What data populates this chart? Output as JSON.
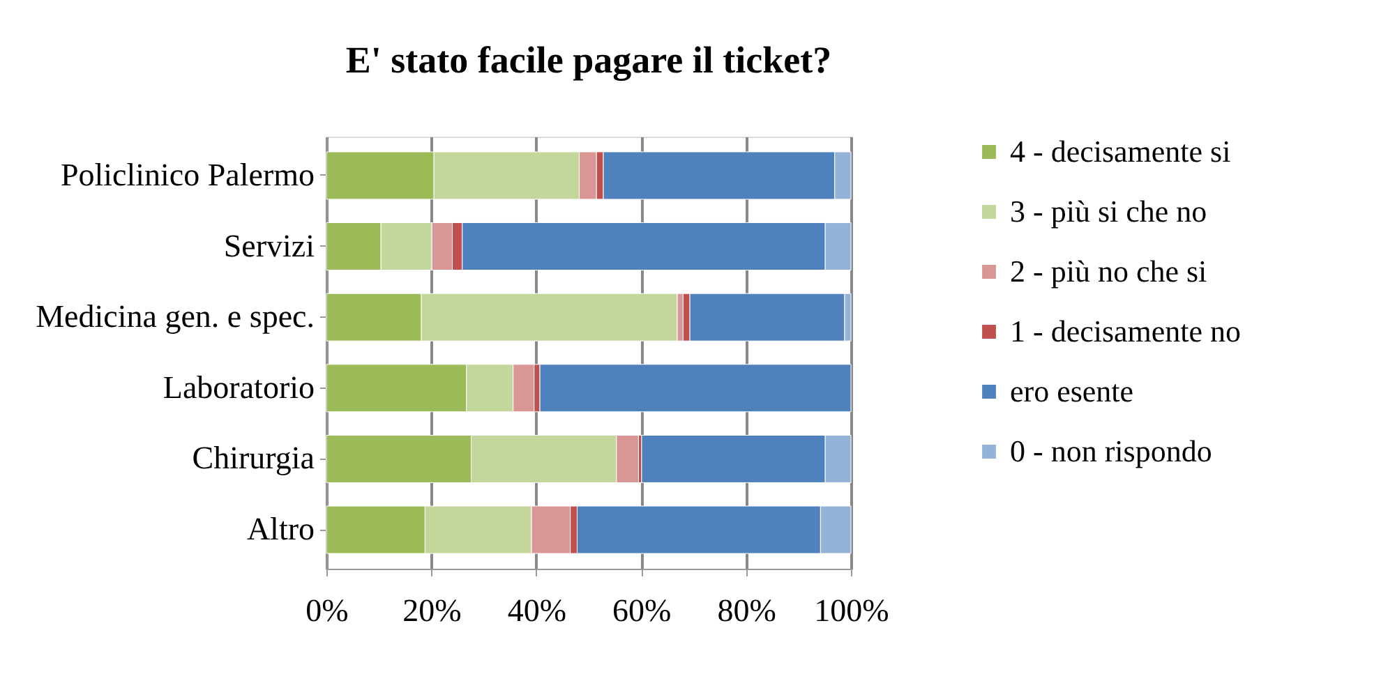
{
  "chart_data": {
    "type": "bar",
    "orientation": "horizontal",
    "stacked": true,
    "title": "E' stato facile pagare il ticket?",
    "categories": [
      "Policlinico Palermo",
      "Servizi",
      "Medicina gen. e spec.",
      "Laboratorio",
      "Chirurgia",
      "Altro"
    ],
    "series": [
      {
        "name": "4 - decisamente si",
        "color": "#9bbb59",
        "values": [
          20.5,
          10.4,
          18.1,
          26.7,
          27.6,
          18.8
        ]
      },
      {
        "name": "3 - più si che no",
        "color": "#c3d69b",
        "values": [
          27.7,
          9.7,
          48.8,
          8.9,
          27.7,
          20.3
        ]
      },
      {
        "name": "2 - più no che si",
        "color": "#d99694",
        "values": [
          3.3,
          3.9,
          1.1,
          4.0,
          4.2,
          7.4
        ]
      },
      {
        "name": "1 - decisamente no",
        "color": "#c0504d",
        "values": [
          1.3,
          1.9,
          1.3,
          1.1,
          0.6,
          1.3
        ]
      },
      {
        "name": "ero esente",
        "color": "#4f81bd",
        "values": [
          44.1,
          69.2,
          29.5,
          59.3,
          35.0,
          46.4
        ]
      },
      {
        "name": "0 - non rispondo",
        "color": "#95b3d7",
        "values": [
          3.1,
          4.9,
          1.2,
          0.0,
          4.9,
          5.8
        ]
      }
    ],
    "xlim": [
      0,
      100
    ],
    "xticks": [
      {
        "value": 0,
        "label": "0%"
      },
      {
        "value": 20,
        "label": "20%"
      },
      {
        "value": 40,
        "label": "40%"
      },
      {
        "value": 60,
        "label": "60%"
      },
      {
        "value": 80,
        "label": "80%"
      },
      {
        "value": 100,
        "label": "100%"
      }
    ],
    "grid": "x",
    "legend": "right"
  }
}
